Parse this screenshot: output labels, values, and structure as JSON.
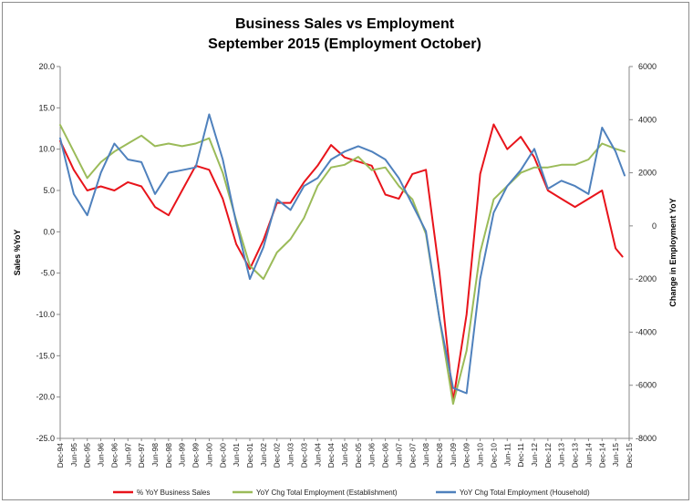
{
  "chart_data": {
    "type": "line",
    "title": [
      "Business Sales vs Employment",
      "September 2015 (Employment October)"
    ],
    "ylabel_left": "Sales %YoY",
    "ylabel_right": "Change in Employment YoY",
    "ylim_left": [
      -25,
      20
    ],
    "ylim_right": [
      -8000,
      6000
    ],
    "yticks_left": [
      "20.0",
      "15.0",
      "10.0",
      "5.0",
      "0.0",
      "-5.0",
      "-10.0",
      "-15.0",
      "-20.0",
      "-25.0"
    ],
    "yticks_right": [
      "6000",
      "4000",
      "2000",
      "0",
      "-2000",
      "-4000",
      "-6000",
      "-8000"
    ],
    "x_range": [
      "Dec-94",
      "Dec-15"
    ],
    "xticks": [
      "Dec-94",
      "Jun-95",
      "Dec-95",
      "Jun-96",
      "Dec-96",
      "Jun-97",
      "Dec-97",
      "Jun-98",
      "Dec-98",
      "Jun-99",
      "Dec-99",
      "Jun-00",
      "Dec-00",
      "Jun-01",
      "Dec-01",
      "Jun-02",
      "Dec-02",
      "Jun-03",
      "Dec-03",
      "Jun-04",
      "Dec-04",
      "Jun-05",
      "Dec-05",
      "Jun-06",
      "Dec-06",
      "Jun-07",
      "Dec-07",
      "Jun-08",
      "Dec-08",
      "Jun-09",
      "Dec-09",
      "Jun-10",
      "Dec-10",
      "Jun-11",
      "Dec-11",
      "Jun-12",
      "Dec-12",
      "Jun-13",
      "Dec-13",
      "Jun-14",
      "Dec-14",
      "Jun-15",
      "Dec-15"
    ],
    "legend_position": "bottom",
    "grid": false,
    "series": [
      {
        "name": "% YoY Business Sales",
        "axis": "left",
        "color": "#e8141b",
        "points": [
          [
            "Dec-94",
            11.0
          ],
          [
            "Jun-95",
            7.5
          ],
          [
            "Dec-95",
            5.0
          ],
          [
            "Jun-96",
            5.5
          ],
          [
            "Dec-96",
            5.0
          ],
          [
            "Jun-97",
            6.0
          ],
          [
            "Dec-97",
            5.5
          ],
          [
            "Jun-98",
            3.0
          ],
          [
            "Dec-98",
            2.0
          ],
          [
            "Jun-99",
            5.0
          ],
          [
            "Dec-99",
            8.0
          ],
          [
            "Jun-00",
            7.5
          ],
          [
            "Dec-00",
            4.0
          ],
          [
            "Jun-01",
            -1.5
          ],
          [
            "Dec-01",
            -4.5
          ],
          [
            "Jun-02",
            -1.0
          ],
          [
            "Dec-02",
            3.5
          ],
          [
            "Jun-03",
            3.5
          ],
          [
            "Dec-03",
            6.0
          ],
          [
            "Jun-04",
            8.0
          ],
          [
            "Dec-04",
            10.5
          ],
          [
            "Jun-05",
            9.0
          ],
          [
            "Dec-05",
            8.5
          ],
          [
            "Jun-06",
            8.0
          ],
          [
            "Dec-06",
            4.5
          ],
          [
            "Jun-07",
            4.0
          ],
          [
            "Dec-07",
            7.0
          ],
          [
            "Jun-08",
            7.5
          ],
          [
            "Dec-08",
            -5.0
          ],
          [
            "Jun-09",
            -20.5
          ],
          [
            "Dec-09",
            -10.0
          ],
          [
            "Jun-10",
            7.0
          ],
          [
            "Dec-10",
            13.0
          ],
          [
            "Jun-11",
            10.0
          ],
          [
            "Dec-11",
            11.5
          ],
          [
            "Jun-12",
            9.0
          ],
          [
            "Dec-12",
            5.0
          ],
          [
            "Jun-13",
            4.0
          ],
          [
            "Dec-13",
            3.0
          ],
          [
            "Jun-14",
            4.0
          ],
          [
            "Dec-14",
            5.0
          ],
          [
            "Jun-15",
            -2.0
          ],
          [
            "Sep-15",
            -3.0
          ]
        ]
      },
      {
        "name": "YoY Chg Total Employment (Establishment)",
        "axis": "right",
        "color": "#9bbb59",
        "points": [
          [
            "Dec-94",
            3800
          ],
          [
            "Jun-95",
            2800
          ],
          [
            "Dec-95",
            1800
          ],
          [
            "Jun-96",
            2400
          ],
          [
            "Dec-96",
            2800
          ],
          [
            "Jun-97",
            3100
          ],
          [
            "Dec-97",
            3400
          ],
          [
            "Jun-98",
            3000
          ],
          [
            "Dec-98",
            3100
          ],
          [
            "Jun-99",
            3000
          ],
          [
            "Dec-99",
            3100
          ],
          [
            "Jun-00",
            3300
          ],
          [
            "Dec-00",
            2000
          ],
          [
            "Jun-01",
            200
          ],
          [
            "Dec-01",
            -1500
          ],
          [
            "Jun-02",
            -2000
          ],
          [
            "Dec-02",
            -1000
          ],
          [
            "Jun-03",
            -500
          ],
          [
            "Dec-03",
            300
          ],
          [
            "Jun-04",
            1500
          ],
          [
            "Dec-04",
            2200
          ],
          [
            "Jun-05",
            2300
          ],
          [
            "Dec-05",
            2600
          ],
          [
            "Jun-06",
            2100
          ],
          [
            "Dec-06",
            2200
          ],
          [
            "Jun-07",
            1500
          ],
          [
            "Dec-07",
            1000
          ],
          [
            "Jun-08",
            -300
          ],
          [
            "Dec-08",
            -3500
          ],
          [
            "Jun-09",
            -6700
          ],
          [
            "Dec-09",
            -4700
          ],
          [
            "Jun-10",
            -1000
          ],
          [
            "Dec-10",
            1000
          ],
          [
            "Jun-11",
            1500
          ],
          [
            "Dec-11",
            2000
          ],
          [
            "Jun-12",
            2200
          ],
          [
            "Dec-12",
            2200
          ],
          [
            "Jun-13",
            2300
          ],
          [
            "Dec-13",
            2300
          ],
          [
            "Jun-14",
            2500
          ],
          [
            "Dec-14",
            3100
          ],
          [
            "Jun-15",
            2900
          ],
          [
            "Oct-15",
            2800
          ]
        ]
      },
      {
        "name": "YoY Chg Total Employment (Household)",
        "axis": "right",
        "color": "#4f81bd",
        "points": [
          [
            "Dec-94",
            3300
          ],
          [
            "Jun-95",
            1200
          ],
          [
            "Dec-95",
            400
          ],
          [
            "Jun-96",
            2000
          ],
          [
            "Dec-96",
            3100
          ],
          [
            "Jun-97",
            2500
          ],
          [
            "Dec-97",
            2400
          ],
          [
            "Jun-98",
            1200
          ],
          [
            "Dec-98",
            2000
          ],
          [
            "Jun-99",
            2100
          ],
          [
            "Dec-99",
            2200
          ],
          [
            "Jun-00",
            4200
          ],
          [
            "Dec-00",
            2500
          ],
          [
            "Jun-01",
            100
          ],
          [
            "Dec-01",
            -2000
          ],
          [
            "Jun-02",
            -800
          ],
          [
            "Dec-02",
            1000
          ],
          [
            "Jun-03",
            600
          ],
          [
            "Dec-03",
            1500
          ],
          [
            "Jun-04",
            1800
          ],
          [
            "Dec-04",
            2500
          ],
          [
            "Jun-05",
            2800
          ],
          [
            "Dec-05",
            3000
          ],
          [
            "Jun-06",
            2800
          ],
          [
            "Dec-06",
            2500
          ],
          [
            "Jun-07",
            1800
          ],
          [
            "Dec-07",
            800
          ],
          [
            "Jun-08",
            -200
          ],
          [
            "Dec-08",
            -3500
          ],
          [
            "Jun-09",
            -6100
          ],
          [
            "Dec-09",
            -6300
          ],
          [
            "Jun-10",
            -2000
          ],
          [
            "Dec-10",
            500
          ],
          [
            "Jun-11",
            1500
          ],
          [
            "Dec-11",
            2100
          ],
          [
            "Jun-12",
            2900
          ],
          [
            "Dec-12",
            1400
          ],
          [
            "Jun-13",
            1700
          ],
          [
            "Dec-13",
            1500
          ],
          [
            "Jun-14",
            1200
          ],
          [
            "Dec-14",
            3700
          ],
          [
            "Jun-15",
            2800
          ],
          [
            "Oct-15",
            1900
          ]
        ]
      }
    ]
  }
}
